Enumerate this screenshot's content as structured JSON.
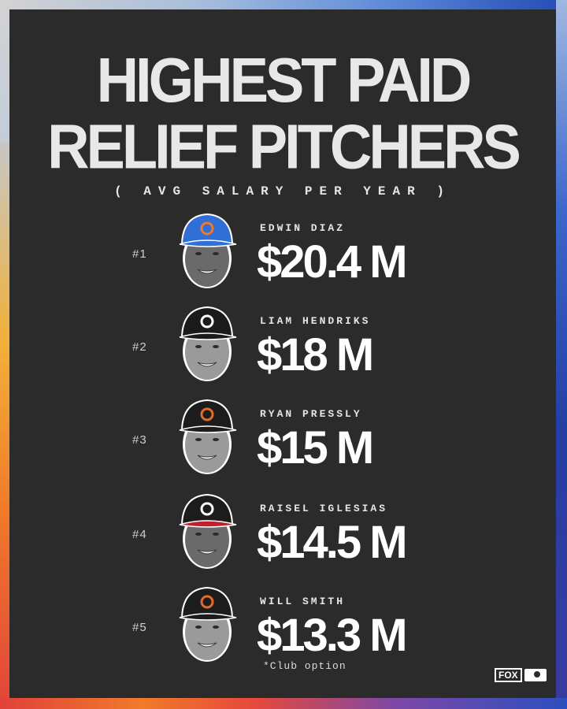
{
  "title": {
    "line1": "HIGHEST PAID",
    "line2": "RELIEF PITCHERS"
  },
  "subtitle": "( AVG SALARY PER YEAR )",
  "pitchers": [
    {
      "rank": "#1",
      "name": "EDWIN DIAZ",
      "salary": "$20.4 M",
      "cap_color": "#2f6fd6",
      "cap_logo_color": "#f2772b"
    },
    {
      "rank": "#2",
      "name": "LIAM HENDRIKS",
      "salary": "$18 M",
      "cap_color": "#1a1a1a",
      "cap_logo_color": "#ffffff"
    },
    {
      "rank": "#3",
      "name": "RYAN PRESSLY",
      "salary": "$15 M",
      "cap_color": "#1c1c1c",
      "cap_logo_color": "#e06b2a"
    },
    {
      "rank": "#4",
      "name": "RAISEL IGLESIAS",
      "salary": "$14.5 M",
      "cap_color": "#1c1c1c",
      "cap_logo_color": "#ffffff"
    },
    {
      "rank": "#5",
      "name": "WILL SMITH",
      "salary": "$13.3 M",
      "cap_color": "#1c1c1c",
      "cap_logo_color": "#e06b2a"
    }
  ],
  "footnote": "*Club option",
  "branding": {
    "fox": "FOX",
    "mlb": "MLB"
  },
  "colors": {
    "background": "#2b2b2b",
    "frame_gradient": [
      "#c9c9c9",
      "#3a6fd0",
      "#2a4fb8",
      "#e0473a",
      "#f07b2c",
      "#f5b93b"
    ]
  }
}
